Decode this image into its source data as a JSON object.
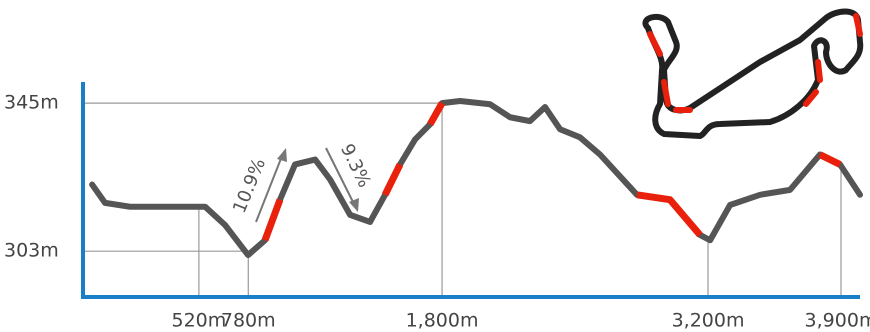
{
  "chart_data": {
    "type": "line",
    "x": [
      -42,
      26,
      158,
      553,
      658,
      779,
      868,
      947,
      1026,
      1132,
      1211,
      1316,
      1421,
      1500,
      1579,
      1658,
      1737,
      1800,
      1895,
      2053,
      2158,
      2263,
      2342,
      2421,
      2526,
      2632,
      2826,
      3000,
      3158,
      3211,
      3316,
      3474,
      3632,
      3789,
      3895,
      4000
    ],
    "series": [
      {
        "color": "#555555",
        "values": [
          321.9,
          316.7,
          315.6,
          315.6,
          310.4,
          301.9,
          306.1,
          317.6,
          327.6,
          329,
          323.3,
          313.3,
          311.3,
          319,
          327.6,
          334.7,
          339,
          345,
          345.6,
          344.7,
          341,
          339.9,
          343.9,
          337.6,
          335.3,
          330.4,
          319,
          317.6,
          307.6,
          306.1,
          316.1,
          319,
          320.4,
          330.4,
          327.6,
          319
        ]
      },
      {
        "color": "#e8200c",
        "values": [
          null,
          null,
          null,
          null,
          null,
          null,
          306.1,
          317.6,
          null,
          null,
          null,
          null,
          null,
          319,
          327.6,
          null,
          339,
          345,
          null,
          null,
          null,
          null,
          null,
          null,
          null,
          null,
          319,
          317.6,
          307.6,
          null,
          null,
          null,
          null,
          330.4,
          327.6,
          null
        ]
      }
    ],
    "xlim": [
      -90,
      4000
    ],
    "ylim": [
      290,
      351
    ],
    "xticks": [
      {
        "value": 520,
        "label": "520m"
      },
      {
        "value": 780,
        "label": "780m"
      },
      {
        "value": 1800,
        "label": "1,800m"
      },
      {
        "value": 3200,
        "label": "3,200m"
      },
      {
        "value": 3900,
        "label": "3,900m"
      }
    ],
    "yticks": [
      {
        "value": 303,
        "label": "303m"
      },
      {
        "value": 345,
        "label": "345m"
      }
    ],
    "axis_color": "#1a7fc9",
    "annotations": [
      "10.9%",
      "9.3%"
    ]
  }
}
